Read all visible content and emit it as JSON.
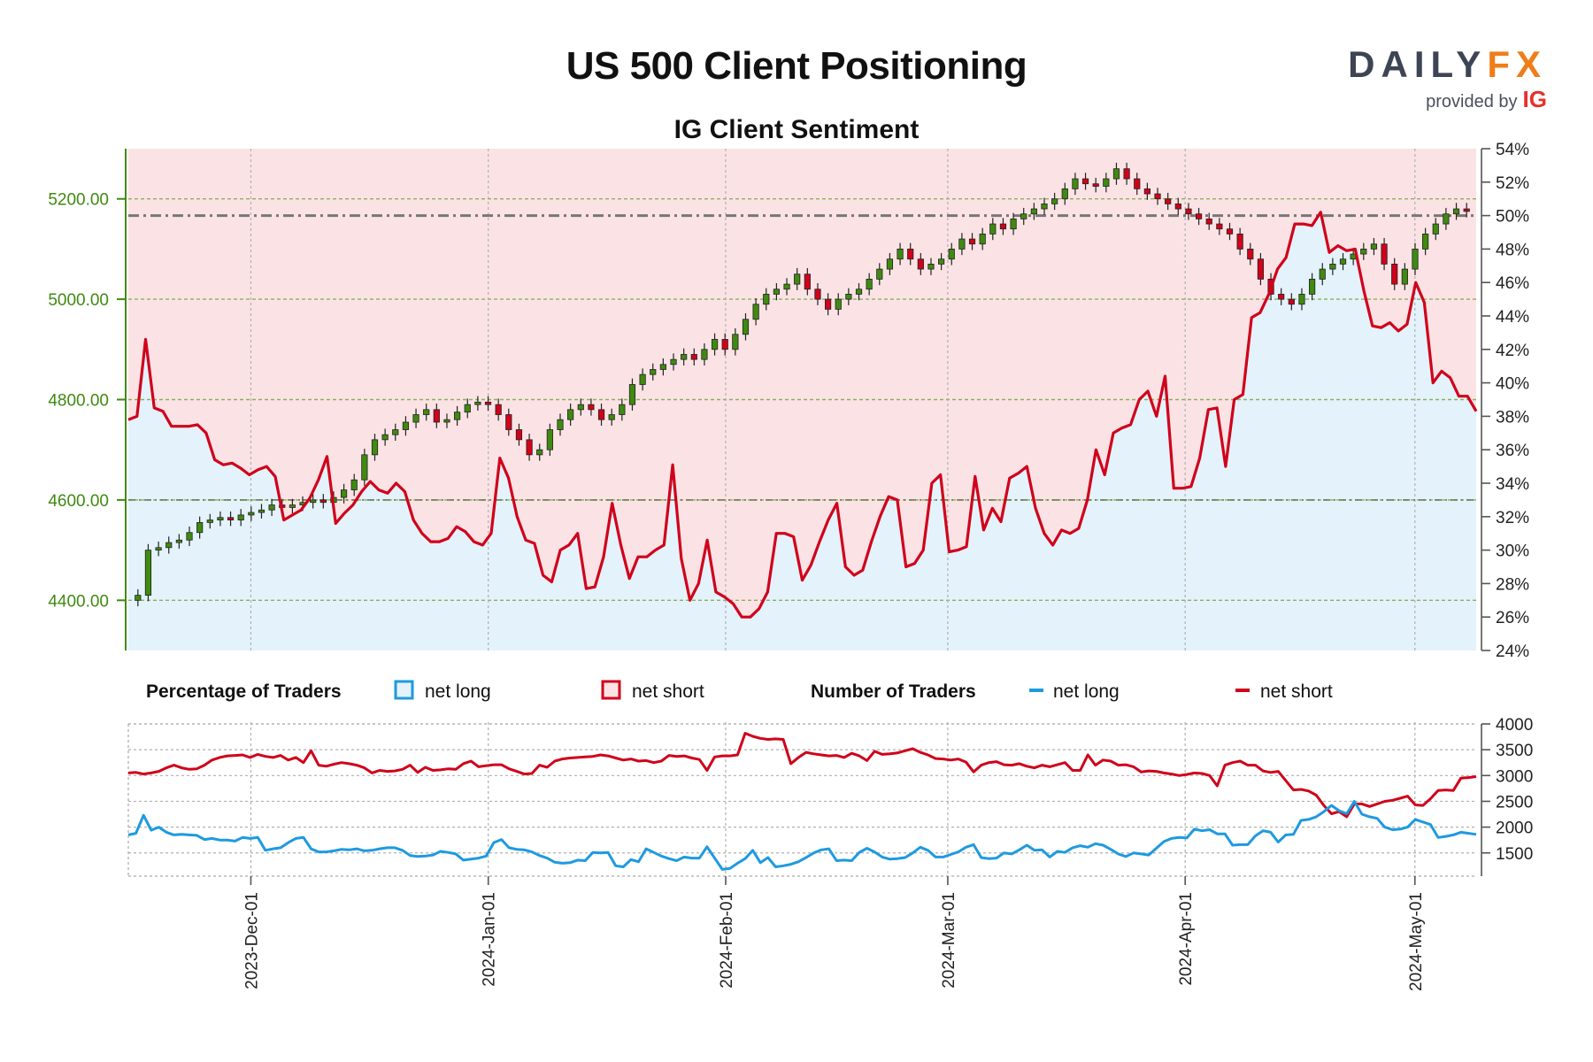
{
  "title": "US 500 Client Positioning",
  "subtitle": "IG Client Sentiment",
  "logo": {
    "brand_left": "DAILY",
    "brand_right": "FX",
    "provided": "provided by",
    "ig": "IG"
  },
  "colors": {
    "price_axis": "#3f8a10",
    "net_long": "#1e9ae0",
    "net_short": "#d0021b",
    "long_fill": "#e4f2fb",
    "short_fill": "#fbe3e5",
    "candle_up": "#3f8a10",
    "candle_down": "#d0021b"
  },
  "legend": {
    "pct_label": "Percentage of Traders",
    "pct_long": "net long",
    "pct_short": "net short",
    "num_label": "Number of Traders",
    "num_long": "net long",
    "num_short": "net short"
  },
  "chart_data": [
    {
      "type": "candlestick",
      "x_start": "2023-11-15",
      "x_end": "2024-05-09",
      "x_ticks": [
        "2023-Dec-01",
        "2024-Jan-01",
        "2024-Feb-01",
        "2024-Mar-01",
        "2024-Apr-01",
        "2024-May-01"
      ],
      "y_left": {
        "ticks": [
          "4400.00",
          "4600.00",
          "4800.00",
          "5000.00",
          "5200.00"
        ],
        "range": [
          4300,
          5300
        ]
      },
      "y_right": {
        "ticks": [
          "24%",
          "26%",
          "28%",
          "30%",
          "32%",
          "34%",
          "36%",
          "38%",
          "40%",
          "42%",
          "44%",
          "46%",
          "48%",
          "50%",
          "52%",
          "54%"
        ],
        "range": [
          24,
          54
        ]
      },
      "reference_line_pct": 50,
      "price_close": [
        4410,
        4500,
        4505,
        4515,
        4520,
        4535,
        4555,
        4560,
        4565,
        4560,
        4570,
        4575,
        4580,
        4590,
        4585,
        4590,
        4595,
        4600,
        4595,
        4605,
        4620,
        4640,
        4690,
        4720,
        4730,
        4740,
        4755,
        4770,
        4780,
        4755,
        4760,
        4775,
        4790,
        4795,
        4790,
        4770,
        4740,
        4720,
        4690,
        4700,
        4740,
        4760,
        4780,
        4790,
        4780,
        4760,
        4770,
        4790,
        4830,
        4850,
        4860,
        4870,
        4880,
        4890,
        4880,
        4900,
        4920,
        4900,
        4930,
        4960,
        4990,
        5010,
        5020,
        5030,
        5050,
        5020,
        5000,
        4980,
        5000,
        5010,
        5020,
        5040,
        5060,
        5080,
        5100,
        5080,
        5060,
        5070,
        5080,
        5100,
        5120,
        5110,
        5130,
        5150,
        5140,
        5160,
        5170,
        5180,
        5190,
        5200,
        5220,
        5240,
        5230,
        5225,
        5240,
        5260,
        5240,
        5220,
        5210,
        5200,
        5190,
        5180,
        5170,
        5160,
        5150,
        5140,
        5130,
        5100,
        5080,
        5040,
        5010,
        5000,
        4990,
        5010,
        5040,
        5060,
        5070,
        5080,
        5090,
        5100,
        5110,
        5070,
        5030,
        5060,
        5100,
        5130,
        5150,
        5170,
        5180,
        5175
      ],
      "pct_net_long": [
        37.8,
        38.0,
        42.6,
        38.5,
        38.3,
        37.4,
        37.4,
        37.4,
        37.5,
        37.0,
        35.4,
        35.1,
        35.2,
        34.9,
        34.5,
        34.8,
        35.0,
        34.4,
        31.8,
        32.1,
        32.4,
        33.1,
        34.2,
        35.6,
        31.6,
        32.2,
        32.7,
        33.5,
        34.1,
        33.6,
        33.4,
        34.0,
        33.5,
        31.8,
        31.0,
        30.5,
        30.5,
        30.7,
        31.4,
        31.1,
        30.5,
        30.3,
        31.0,
        35.5,
        34.3,
        32.0,
        30.6,
        30.4,
        28.5,
        28.1,
        30.0,
        30.3,
        31.0,
        27.7,
        27.8,
        29.6,
        32.8,
        30.3,
        28.3,
        29.6,
        29.6,
        30.0,
        30.3,
        35.1,
        29.5,
        27.0,
        28.0,
        30.6,
        27.5,
        27.2,
        26.8,
        26.0,
        26.0,
        26.5,
        27.5,
        31.0,
        31.0,
        30.8,
        28.2,
        29.1,
        30.5,
        31.8,
        32.8,
        29.0,
        28.5,
        28.8,
        30.5,
        32.0,
        33.2,
        33.0,
        29.0,
        29.2,
        30.0,
        34.0,
        34.5,
        29.9,
        30.0,
        30.2,
        34.4,
        31.2,
        32.5,
        31.7,
        34.3,
        34.6,
        35.0,
        32.5,
        31.0,
        30.3,
        31.2,
        31.0,
        31.3,
        33.0,
        36.0,
        34.5,
        37.0,
        37.3,
        37.5,
        39.0,
        39.5,
        38.0,
        40.4,
        33.7,
        33.7,
        33.8,
        35.5,
        38.4,
        38.5,
        35.0,
        39.0,
        39.3,
        43.9,
        44.2,
        45.3,
        46.8,
        47.5,
        49.5,
        49.5,
        49.4,
        50.2,
        47.8,
        48.2,
        47.9,
        48.0,
        45.5,
        43.4,
        43.3,
        43.6,
        43.1,
        43.5,
        46.0,
        44.8,
        40.0,
        40.7,
        40.3,
        39.2,
        39.2,
        38.3
      ],
      "y2_range": [
        24,
        54
      ]
    },
    {
      "type": "line",
      "title": "Number of Traders",
      "y_ticks": [
        "1500",
        "2000",
        "2500",
        "3000",
        "3500",
        "4000"
      ],
      "ylim": [
        1050,
        4000
      ],
      "series": [
        {
          "name": "net short",
          "values": [
            3050,
            3060,
            3030,
            3050,
            3080,
            3150,
            3200,
            3150,
            3120,
            3130,
            3200,
            3300,
            3350,
            3380,
            3390,
            3400,
            3350,
            3410,
            3370,
            3350,
            3390,
            3300,
            3350,
            3250,
            3480,
            3200,
            3180,
            3220,
            3250,
            3230,
            3200,
            3150,
            3050,
            3100,
            3080,
            3090,
            3120,
            3200,
            3060,
            3160,
            3100,
            3110,
            3130,
            3120,
            3230,
            3280,
            3170,
            3190,
            3210,
            3210,
            3130,
            3080,
            3030,
            3040,
            3200,
            3160,
            3280,
            3320,
            3340,
            3350,
            3360,
            3370,
            3400,
            3380,
            3340,
            3300,
            3320,
            3280,
            3290,
            3250,
            3280,
            3390,
            3370,
            3380,
            3340,
            3310,
            3100,
            3360,
            3380,
            3380,
            3400,
            3820,
            3760,
            3720,
            3700,
            3710,
            3700,
            3230,
            3350,
            3450,
            3420,
            3400,
            3380,
            3390,
            3350,
            3430,
            3380,
            3290,
            3470,
            3410,
            3420,
            3440,
            3480,
            3520,
            3450,
            3400,
            3330,
            3320,
            3300,
            3320,
            3260,
            3070,
            3200,
            3250,
            3270,
            3210,
            3200,
            3230,
            3180,
            3150,
            3200,
            3170,
            3210,
            3250,
            3100,
            3100,
            3400,
            3200,
            3300,
            3280,
            3200,
            3210,
            3170,
            3070,
            3090,
            3080,
            3050,
            3030,
            3000,
            3020,
            3050,
            3040,
            3000,
            2800,
            3200,
            3250,
            3280,
            3200,
            3200,
            3090,
            3060,
            3080,
            2900,
            2720,
            2730,
            2700,
            2620,
            2420,
            2260,
            2300,
            2200,
            2450,
            2450,
            2400,
            2450,
            2500,
            2520,
            2560,
            2600,
            2430,
            2420,
            2550,
            2710,
            2720,
            2710,
            2950,
            2960,
            2980
          ]
        },
        {
          "name": "net long",
          "values": [
            1850,
            1880,
            2230,
            1940,
            2000,
            1900,
            1850,
            1860,
            1850,
            1840,
            1760,
            1780,
            1750,
            1750,
            1730,
            1800,
            1780,
            1800,
            1550,
            1580,
            1600,
            1700,
            1780,
            1800,
            1580,
            1520,
            1520,
            1540,
            1570,
            1560,
            1580,
            1540,
            1550,
            1580,
            1600,
            1600,
            1550,
            1450,
            1430,
            1440,
            1460,
            1530,
            1510,
            1480,
            1360,
            1380,
            1400,
            1440,
            1700,
            1760,
            1600,
            1570,
            1560,
            1520,
            1450,
            1400,
            1320,
            1300,
            1310,
            1360,
            1350,
            1510,
            1500,
            1510,
            1250,
            1230,
            1370,
            1330,
            1580,
            1510,
            1440,
            1390,
            1350,
            1420,
            1400,
            1400,
            1620,
            1400,
            1180,
            1200,
            1300,
            1390,
            1550,
            1310,
            1410,
            1230,
            1250,
            1280,
            1330,
            1410,
            1500,
            1560,
            1580,
            1350,
            1360,
            1350,
            1510,
            1590,
            1520,
            1420,
            1380,
            1390,
            1410,
            1500,
            1610,
            1550,
            1420,
            1420,
            1470,
            1520,
            1610,
            1660,
            1410,
            1390,
            1400,
            1500,
            1480,
            1560,
            1650,
            1550,
            1560,
            1420,
            1530,
            1510,
            1600,
            1640,
            1610,
            1680,
            1650,
            1570,
            1480,
            1430,
            1500,
            1480,
            1460,
            1590,
            1720,
            1780,
            1800,
            1790,
            1960,
            1930,
            1950,
            1870,
            1870,
            1650,
            1660,
            1660,
            1830,
            1930,
            1900,
            1710,
            1850,
            1860,
            2130,
            2150,
            2200,
            2300,
            2420,
            2320,
            2260,
            2500,
            2250,
            2200,
            2170,
            2000,
            1950,
            1960,
            2000,
            2150,
            2100,
            2050,
            1800,
            1820,
            1850,
            1900,
            1880,
            1860
          ]
        }
      ]
    }
  ]
}
